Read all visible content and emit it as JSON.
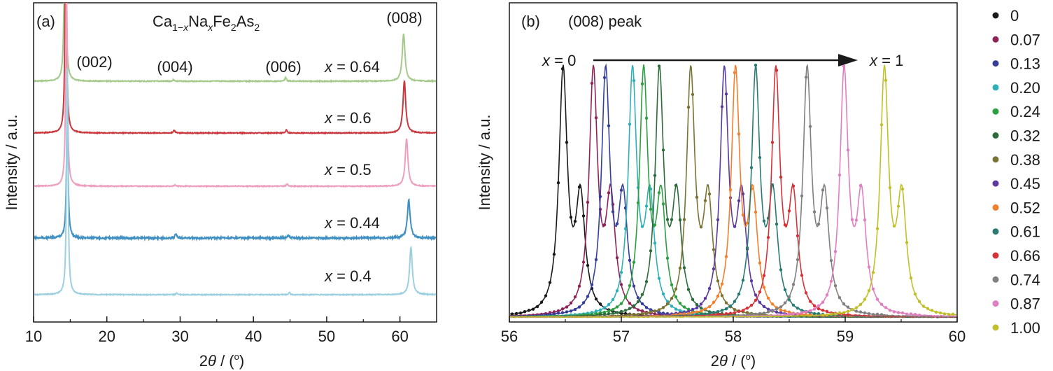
{
  "chart_data": [
    {
      "type": "line",
      "panel_label": "(a)",
      "title_parts": {
        "a": "Ca",
        "b": "1−",
        "c": "x",
        "d": "Na",
        "e": "x",
        "f": "Fe",
        "g": "2",
        "h": "As",
        "i": "2"
      },
      "xlabel_parts": {
        "a": "2",
        "b": "θ",
        "c": " / (",
        "d": "o",
        "e": ")"
      },
      "ylabel": "Intensity / a.u.",
      "xlim": [
        10,
        65
      ],
      "xticks": [
        "10",
        "20",
        "30",
        "40",
        "50",
        "60"
      ],
      "peaks": [
        {
          "label": "(002)",
          "x": 14.5
        },
        {
          "label": "(004)",
          "x": 29.3
        },
        {
          "label": "(006)",
          "x": 44.6
        },
        {
          "label": "(008)",
          "x": 60.8
        }
      ],
      "series": [
        {
          "name": "0.64",
          "x_prefix": "x",
          "x_suffix": " = 0.64",
          "color": "#a5c98a",
          "peak_positions": [
            14.3,
            29.1,
            44.4,
            60.5
          ],
          "peak_heights": [
            1.0,
            0.02,
            0.05,
            0.62
          ]
        },
        {
          "name": "0.6",
          "x_prefix": "x",
          "x_suffix": " = 0.6",
          "color": "#c8383d",
          "peak_positions": [
            14.4,
            29.2,
            44.5,
            60.6
          ],
          "peak_heights": [
            1.0,
            0.04,
            0.04,
            0.68
          ]
        },
        {
          "name": "0.5",
          "x_prefix": "x",
          "x_suffix": " = 0.5",
          "color": "#ee9fbf",
          "peak_positions": [
            14.5,
            29.3,
            44.6,
            60.9
          ],
          "peak_heights": [
            1.0,
            0.02,
            0.03,
            0.62
          ]
        },
        {
          "name": "0.44",
          "x_prefix": "x",
          "x_suffix": " = 0.44",
          "color": "#3f8fc2",
          "peak_positions": [
            14.6,
            29.4,
            44.8,
            61.2
          ],
          "peak_heights": [
            0.62,
            0.06,
            0.04,
            0.5
          ]
        },
        {
          "name": "0.4",
          "x_prefix": "x",
          "x_suffix": " = 0.4",
          "color": "#9cd0e0",
          "peak_positions": [
            14.6,
            29.5,
            44.9,
            61.5
          ],
          "peak_heights": [
            1.0,
            0.02,
            0.03,
            0.62
          ]
        }
      ]
    },
    {
      "type": "line",
      "panel_label": "(b)",
      "title": "(008) peak",
      "arrow_start": {
        "a": "x",
        "b": " = 0"
      },
      "arrow_end": {
        "a": "x",
        "b": " = 1"
      },
      "xlabel_parts": {
        "a": "2",
        "b": "θ",
        "c": " / (",
        "d": "o",
        "e": ")"
      },
      "ylabel": "Intensity / a.u.",
      "xlim": [
        56,
        60
      ],
      "xticks": [
        "56",
        "57",
        "58",
        "59",
        "60"
      ],
      "legend_position": "right",
      "series": [
        {
          "name": "0",
          "color": "#1a1a1a",
          "peak": 56.48
        },
        {
          "name": "0.07",
          "color": "#8e2357",
          "peak": 56.75
        },
        {
          "name": "0.13",
          "color": "#353f98",
          "peak": 56.86
        },
        {
          "name": "0.20",
          "color": "#2fb0b7",
          "peak": 57.1
        },
        {
          "name": "0.24",
          "color": "#2e9e42",
          "peak": 57.2
        },
        {
          "name": "0.32",
          "color": "#2c6b3a",
          "peak": 57.34
        },
        {
          "name": "0.38",
          "color": "#7a7333",
          "peak": 57.62
        },
        {
          "name": "0.45",
          "color": "#5a3a9e",
          "peak": 57.92
        },
        {
          "name": "0.52",
          "color": "#f07f2e",
          "peak": 58.02
        },
        {
          "name": "0.61",
          "color": "#2a7a74",
          "peak": 58.2
        },
        {
          "name": "0.66",
          "color": "#d33238",
          "peak": 58.38
        },
        {
          "name": "0.74",
          "color": "#808080",
          "peak": 58.66
        },
        {
          "name": "0.87",
          "color": "#e07fc0",
          "peak": 58.99
        },
        {
          "name": "1.00",
          "color": "#c0c02c",
          "peak": 59.35
        }
      ]
    }
  ]
}
